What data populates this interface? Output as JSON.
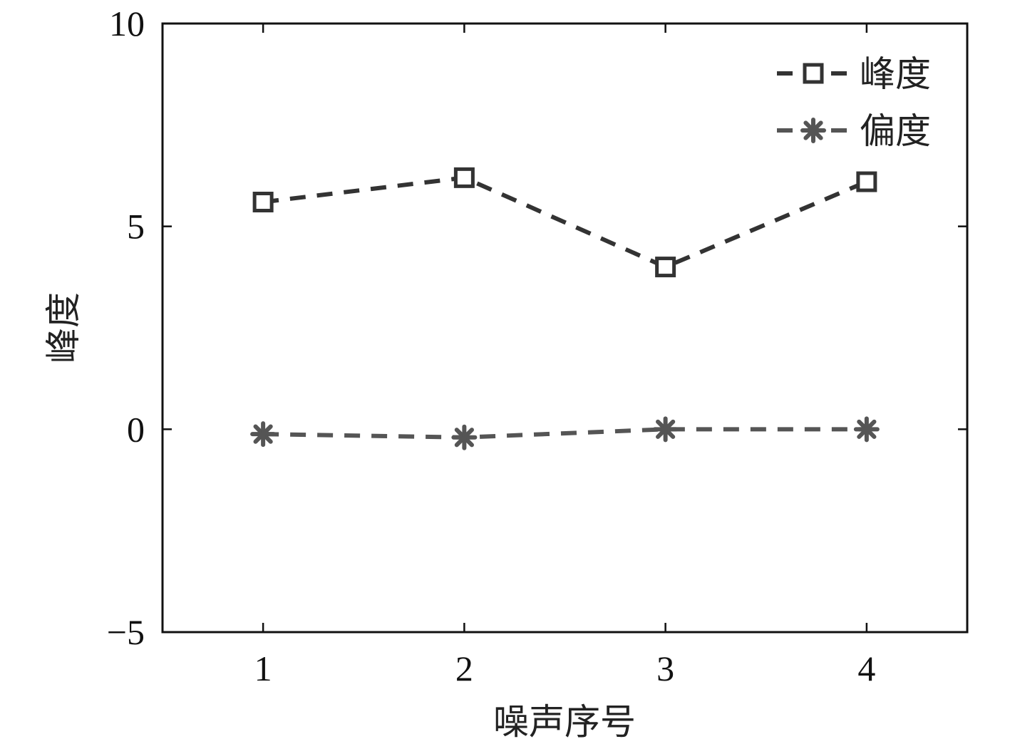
{
  "chart_data": {
    "type": "line",
    "title": "",
    "xlabel": "噪声序号",
    "ylabel": "峰度",
    "x": [
      1,
      2,
      3,
      4
    ],
    "xlim": [
      0.5,
      4.5
    ],
    "ylim": [
      -5,
      10
    ],
    "xticks": [
      "1",
      "2",
      "3",
      "4"
    ],
    "yticks": [
      "10",
      "5",
      "0",
      "−5"
    ],
    "yticks_values": [
      10,
      5,
      0,
      -5
    ],
    "grid": false,
    "legend_position": "top-right",
    "series": [
      {
        "name": "峰度",
        "values": [
          5.6,
          6.2,
          4.0,
          6.1
        ],
        "marker": "square",
        "color": "#333333",
        "line_style": "dashed"
      },
      {
        "name": "偏度",
        "values": [
          -0.12,
          -0.2,
          0.0,
          0.0
        ],
        "marker": "asterisk",
        "color": "#555555",
        "line_style": "dashed"
      }
    ]
  }
}
